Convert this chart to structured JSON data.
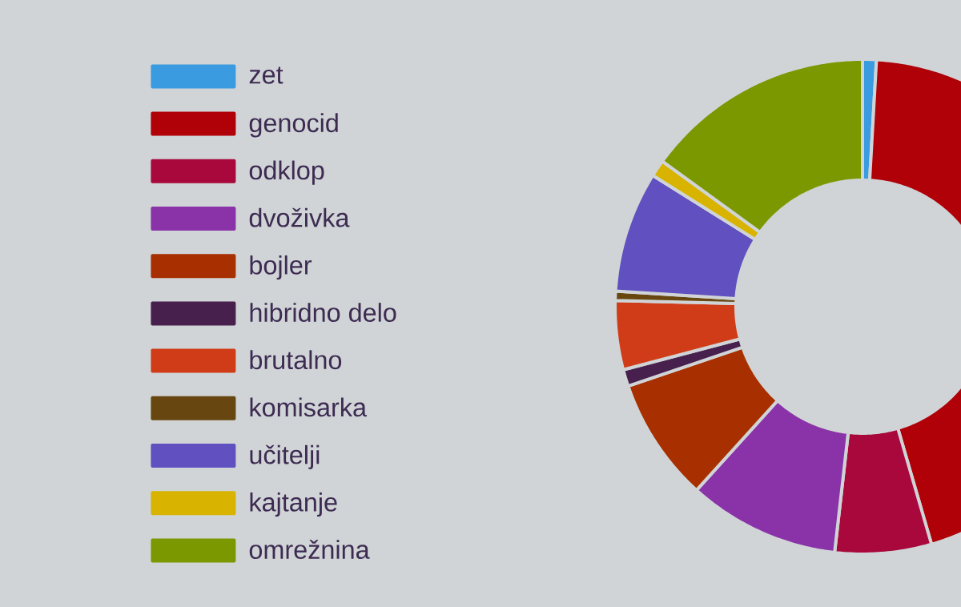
{
  "chart_data": {
    "type": "donut",
    "categories": [
      "zet",
      "genocid",
      "odklop",
      "dvoživka",
      "bojler",
      "hibridno delo",
      "brutalno",
      "komisarka",
      "učitelji",
      "kajtanje",
      "omrežnina"
    ],
    "values": [
      0.9,
      44.6,
      6.3,
      9.9,
      8.1,
      1.1,
      4.5,
      0.6,
      7.9,
      1.1,
      15.0
    ],
    "colors": [
      "#3b9be0",
      "#b00008",
      "#a8083c",
      "#8a32a8",
      "#a83000",
      "#48204e",
      "#d03c18",
      "#684610",
      "#6050c0",
      "#d8b400",
      "#7c9800"
    ],
    "legend": "left"
  }
}
